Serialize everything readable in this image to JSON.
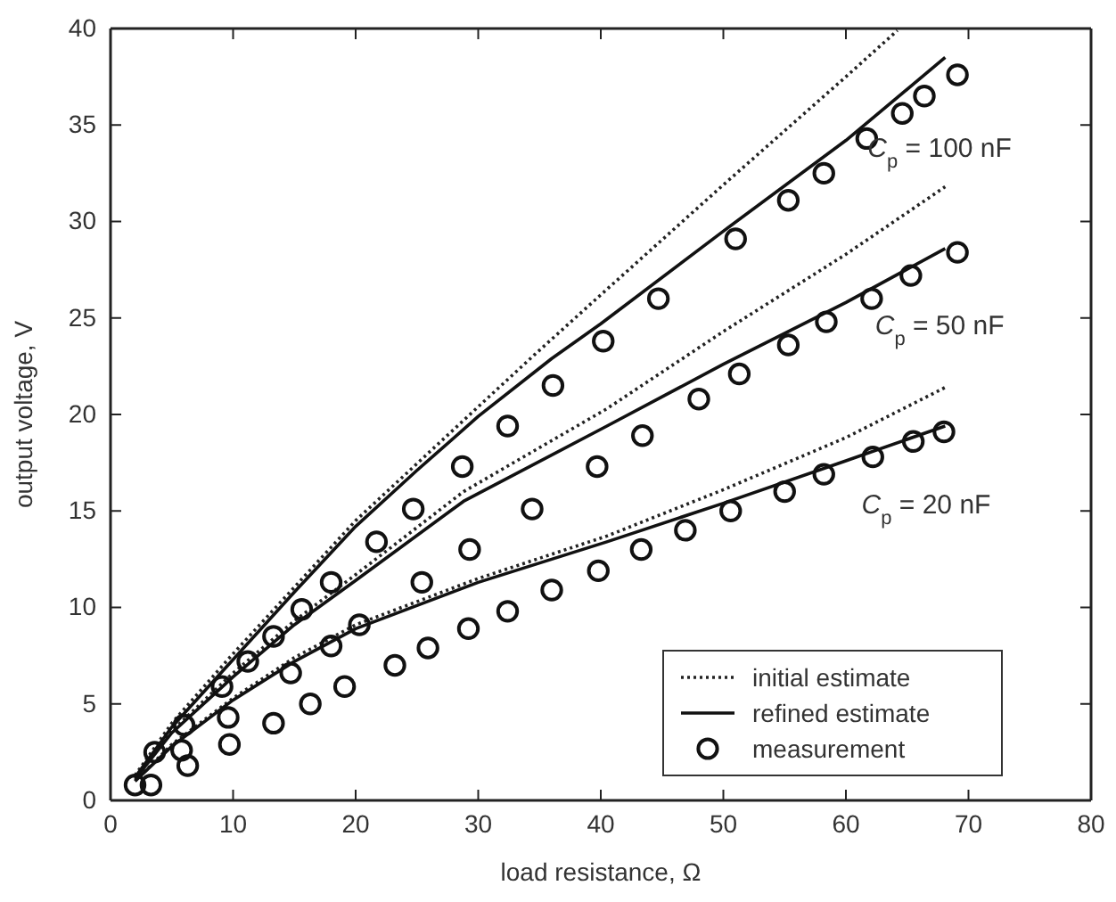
{
  "chart_data": {
    "type": "line",
    "xlabel": "load resistance, Ω",
    "ylabel": "output voltage, V",
    "xlim": [
      0,
      80
    ],
    "ylim": [
      0,
      40
    ],
    "xticks": [
      0,
      10,
      20,
      30,
      40,
      50,
      60,
      70,
      80
    ],
    "yticks": [
      0,
      5,
      10,
      15,
      20,
      25,
      30,
      35,
      40
    ],
    "legend": "bottom right",
    "grid": false,
    "series": [
      {
        "name": "initial estimate",
        "type": "line",
        "line_style": "dotted",
        "marker": "none",
        "color": "#222222",
        "x": [
          2,
          5,
          10,
          20,
          30,
          34.6,
          40,
          50,
          60,
          64.2
        ],
        "values": [
          1.3,
          4,
          7.6,
          14.5,
          20.4,
          23.1,
          26.2,
          31.9,
          37.5,
          39.9
        ]
      },
      {
        "type": "line",
        "line_style": "dotted",
        "marker": "none",
        "color": "#222222",
        "x": [
          2,
          5,
          10,
          15,
          20,
          28.8,
          40.5,
          50,
          60,
          68.1
        ],
        "values": [
          1.2,
          3.6,
          6.6,
          9.3,
          11.7,
          16,
          20.3,
          24.3,
          28.3,
          31.8
        ]
      },
      {
        "type": "line",
        "line_style": "dotted",
        "marker": "none",
        "color": "#222222",
        "x": [
          2,
          5,
          10,
          15,
          20,
          30,
          40.5,
          50,
          60,
          68.1
        ],
        "values": [
          1,
          2.9,
          5.3,
          7.4,
          9.1,
          11.5,
          13.7,
          16.1,
          18.8,
          21.4
        ]
      },
      {
        "name": "refined estimate",
        "type": "line",
        "line_style": "solid",
        "marker": "none",
        "color": "#111111",
        "x": [
          2,
          5,
          10,
          15,
          20,
          25,
          30,
          36,
          40,
          50,
          60,
          68.1
        ],
        "values": [
          1.2,
          3.8,
          7.3,
          10.8,
          14.2,
          17.1,
          19.9,
          22.9,
          24.7,
          29.5,
          34.2,
          38.5
        ]
      },
      {
        "type": "line",
        "line_style": "solid",
        "marker": "none",
        "color": "#111111",
        "x": [
          2,
          5,
          10,
          15,
          20,
          28.8,
          40.5,
          50,
          60,
          68.1
        ],
        "values": [
          1.1,
          3.5,
          6.4,
          9.1,
          11.4,
          15.5,
          19.4,
          22.6,
          25.8,
          28.6
        ]
      },
      {
        "type": "line",
        "line_style": "solid",
        "marker": "none",
        "color": "#111111",
        "x": [
          2,
          5,
          10,
          15,
          20,
          30,
          40.5,
          50,
          60,
          68.1
        ],
        "values": [
          1,
          2.8,
          5.2,
          7.2,
          8.9,
          11.3,
          13.4,
          15.4,
          17.6,
          19.4
        ]
      },
      {
        "name": "measurement",
        "type": "scatter",
        "marker": "circle",
        "color": "#111111",
        "x": [
          2,
          3.6,
          6,
          9.1,
          11.2,
          13.3,
          15.6,
          18,
          21.7,
          24.7,
          28.7,
          32.4,
          36.1,
          40.2,
          44.7,
          51,
          55.3,
          58.2,
          61.7,
          64.6,
          66.4,
          69.1
        ],
        "values": [
          0.8,
          2.5,
          3.9,
          5.9,
          7.2,
          8.5,
          9.9,
          11.3,
          13.4,
          15.1,
          17.3,
          19.4,
          21.5,
          23.8,
          26,
          29.1,
          31.1,
          32.5,
          34.3,
          35.6,
          36.5,
          37.6
        ]
      },
      {
        "type": "scatter",
        "marker": "circle",
        "color": "#111111",
        "x": [
          5.8,
          9.6,
          14.7,
          18,
          20.3,
          25.4,
          29.3,
          34.4,
          39.7,
          43.4,
          48,
          51.3,
          55.3,
          58.4,
          62.1,
          65.3,
          69.1
        ],
        "values": [
          2.6,
          4.3,
          6.6,
          8,
          9.1,
          11.3,
          13,
          15.1,
          17.3,
          18.9,
          20.8,
          22.1,
          23.6,
          24.8,
          26,
          27.2,
          28.4
        ]
      },
      {
        "type": "scatter",
        "marker": "circle",
        "color": "#111111",
        "x": [
          3.3,
          6.3,
          9.7,
          13.3,
          16.3,
          19.1,
          23.2,
          25.9,
          29.2,
          32.4,
          36,
          39.8,
          43.3,
          46.9,
          50.6,
          55,
          58.2,
          62.2,
          65.5,
          68
        ],
        "values": [
          0.8,
          1.8,
          2.9,
          4,
          5,
          5.9,
          7,
          7.9,
          8.9,
          9.8,
          10.9,
          11.9,
          13,
          14,
          15,
          16,
          16.9,
          17.8,
          18.6,
          19.1
        ]
      }
    ],
    "annotations": [
      "C$_{p}$ = 100 nF",
      "C$_{p}$ = 50 nF",
      "C$_{p}$ = 20 nF"
    ]
  }
}
